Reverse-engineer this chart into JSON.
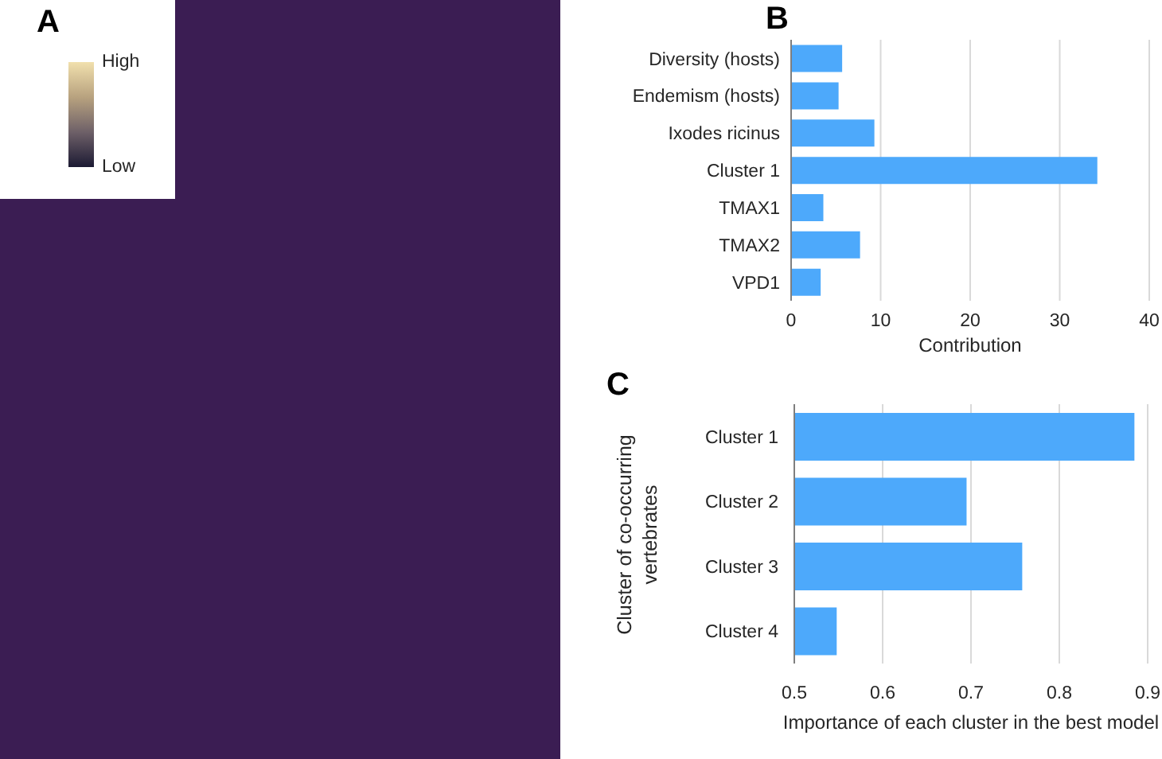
{
  "chart_data": [
    {
      "type": "other",
      "title": "A",
      "annotations": [
        "High",
        "Low"
      ]
    },
    {
      "type": "bar",
      "title": "B",
      "orientation": "horizontal",
      "categories": [
        "Diversity (hosts)",
        "Endemism (hosts)",
        "Ixodes ricinus",
        "Cluster 1",
        "TMAX1",
        "TMAX2",
        "VPD1"
      ],
      "values": [
        5.7,
        5.3,
        9.3,
        34.2,
        3.6,
        7.7,
        3.3
      ],
      "color": "#4da9fb",
      "xlabel": "Contribution",
      "xlim": [
        0,
        40
      ],
      "xticks": [
        0,
        10,
        20,
        30,
        40
      ],
      "grid": "x"
    },
    {
      "type": "bar",
      "title": "C",
      "orientation": "horizontal",
      "categories": [
        "Cluster 1",
        "Cluster 2",
        "Cluster 3",
        "Cluster 4"
      ],
      "values": [
        0.885,
        0.695,
        0.758,
        0.548
      ],
      "color": "#4da9fb",
      "xlabel": "Importance of each cluster in the best model",
      "ylabel": "Cluster of co-occurring vertebrates",
      "xlim": [
        0.5,
        0.9
      ],
      "xticks": [
        0.5,
        0.6,
        0.7,
        0.8,
        0.9
      ],
      "grid": "x"
    }
  ]
}
